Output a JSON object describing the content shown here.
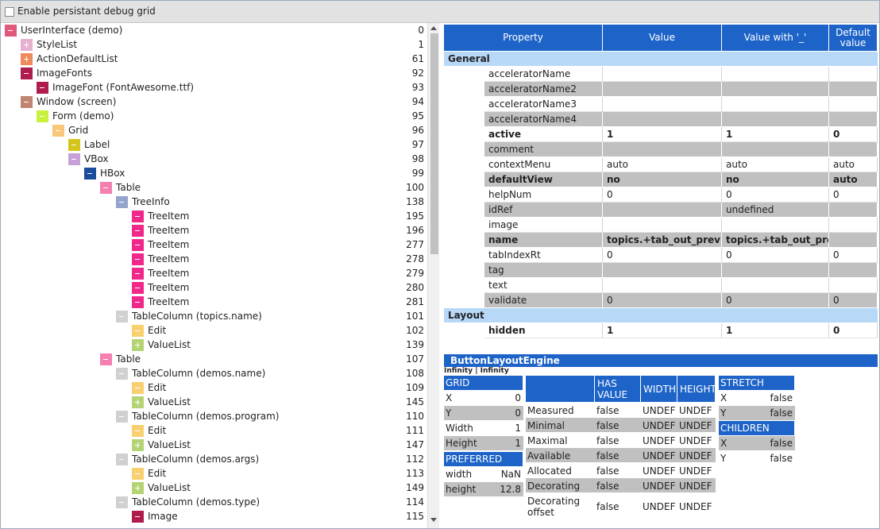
{
  "header": {
    "checkbox_label": "Enable persistant debug grid",
    "checked": false
  },
  "tree": {
    "items": [
      {
        "label": "UserInterface (demo)",
        "id": 0,
        "level": 0,
        "color": "#e2587a",
        "expanded": true
      },
      {
        "label": "StyleList",
        "id": 1,
        "level": 1,
        "color": "#e8b0d0",
        "expanded": false
      },
      {
        "label": "ActionDefaultList",
        "id": 61,
        "level": 1,
        "color": "#f08a5a",
        "expanded": false
      },
      {
        "label": "ImageFonts",
        "id": 92,
        "level": 1,
        "color": "#b01c4c",
        "expanded": true
      },
      {
        "label": "ImageFont (FontAwesome.ttf)",
        "id": 93,
        "level": 2,
        "color": "#b01c4c",
        "expanded": true
      },
      {
        "label": "Window (screen)",
        "id": 94,
        "level": 1,
        "color": "#c08470",
        "expanded": true
      },
      {
        "label": "Form (demo)",
        "id": 95,
        "level": 2,
        "color": "#c8f03c",
        "expanded": true
      },
      {
        "label": "Grid",
        "id": 96,
        "level": 3,
        "color": "#f8c878",
        "expanded": true
      },
      {
        "label": "Label",
        "id": 97,
        "level": 4,
        "color": "#d4c41c",
        "expanded": true
      },
      {
        "label": "VBox",
        "id": 98,
        "level": 4,
        "color": "#c8a0d8",
        "expanded": true
      },
      {
        "label": "HBox",
        "id": 99,
        "level": 5,
        "color": "#1c4c9c",
        "expanded": true
      },
      {
        "label": "Table",
        "id": 100,
        "level": 6,
        "color": "#f480b0",
        "expanded": true
      },
      {
        "label": "TreeInfo",
        "id": 138,
        "level": 7,
        "color": "#94a4cc",
        "expanded": true
      },
      {
        "label": "TreeItem",
        "id": 195,
        "level": 8,
        "color": "#f0288a",
        "expanded": true
      },
      {
        "label": "TreeItem",
        "id": 196,
        "level": 8,
        "color": "#f0288a",
        "expanded": true
      },
      {
        "label": "TreeItem",
        "id": 277,
        "level": 8,
        "color": "#f0288a",
        "expanded": true
      },
      {
        "label": "TreeItem",
        "id": 278,
        "level": 8,
        "color": "#f0288a",
        "expanded": true
      },
      {
        "label": "TreeItem",
        "id": 279,
        "level": 8,
        "color": "#f0288a",
        "expanded": true
      },
      {
        "label": "TreeItem",
        "id": 280,
        "level": 8,
        "color": "#f0288a",
        "expanded": true
      },
      {
        "label": "TreeItem",
        "id": 281,
        "level": 8,
        "color": "#f0288a",
        "expanded": true
      },
      {
        "label": "TableColumn (topics.name)",
        "id": 101,
        "level": 7,
        "color": "#d0d0d0",
        "expanded": true
      },
      {
        "label": "Edit",
        "id": 102,
        "level": 8,
        "color": "#f8d070",
        "expanded": true
      },
      {
        "label": "ValueList",
        "id": 139,
        "level": 8,
        "color": "#b4d474",
        "expanded": false
      },
      {
        "label": "Table",
        "id": 107,
        "level": 6,
        "color": "#f480b0",
        "expanded": true
      },
      {
        "label": "TableColumn (demos.name)",
        "id": 108,
        "level": 7,
        "color": "#d0d0d0",
        "expanded": true
      },
      {
        "label": "Edit",
        "id": 109,
        "level": 8,
        "color": "#f8d070",
        "expanded": true
      },
      {
        "label": "ValueList",
        "id": 145,
        "level": 8,
        "color": "#b4d474",
        "expanded": false
      },
      {
        "label": "TableColumn (demos.program)",
        "id": 110,
        "level": 7,
        "color": "#d0d0d0",
        "expanded": true
      },
      {
        "label": "Edit",
        "id": 111,
        "level": 8,
        "color": "#f8d070",
        "expanded": true
      },
      {
        "label": "ValueList",
        "id": 147,
        "level": 8,
        "color": "#b4d474",
        "expanded": false
      },
      {
        "label": "TableColumn (demos.args)",
        "id": 112,
        "level": 7,
        "color": "#d0d0d0",
        "expanded": true
      },
      {
        "label": "Edit",
        "id": 113,
        "level": 8,
        "color": "#f8d070",
        "expanded": true
      },
      {
        "label": "ValueList",
        "id": 149,
        "level": 8,
        "color": "#b4d474",
        "expanded": false
      },
      {
        "label": "TableColumn (demos.type)",
        "id": 114,
        "level": 7,
        "color": "#d0d0d0",
        "expanded": true
      },
      {
        "label": "Image",
        "id": 115,
        "level": 8,
        "color": "#b01c4c",
        "expanded": true
      }
    ]
  },
  "properties": {
    "columns": [
      "Property",
      "Value",
      "Value with '_'",
      "Default value"
    ],
    "sections": [
      {
        "title": "General",
        "rows": [
          {
            "cells": [
              "acceleratorName",
              null,
              null,
              null
            ],
            "bold": false
          },
          {
            "cells": [
              "acceleratorName2",
              null,
              null,
              null
            ],
            "bold": false
          },
          {
            "cells": [
              "acceleratorName3",
              null,
              null,
              null
            ],
            "bold": false
          },
          {
            "cells": [
              "acceleratorName4",
              null,
              null,
              null
            ],
            "bold": false
          },
          {
            "cells": [
              "active",
              1,
              1,
              0
            ],
            "bold": true
          },
          {
            "cells": [
              "comment",
              null,
              null,
              null
            ],
            "bold": false
          },
          {
            "cells": [
              "contextMenu",
              "auto",
              "auto",
              "auto"
            ],
            "bold": false
          },
          {
            "cells": [
              "defaultView",
              "no",
              "no",
              "auto"
            ],
            "bold": true
          },
          {
            "cells": [
              "helpNum",
              0,
              0,
              0
            ],
            "bold": false
          },
          {
            "cells": [
              "idRef",
              null,
              "undefined",
              null
            ],
            "bold": false
          },
          {
            "cells": [
              "image",
              null,
              null,
              null
            ],
            "bold": false
          },
          {
            "cells": [
              "name",
              "topics.+tab_out_prev",
              "topics.+tab_out_prev",
              null
            ],
            "bold": true
          },
          {
            "cells": [
              "tabIndexRt",
              0,
              0,
              0
            ],
            "bold": false
          },
          {
            "cells": [
              "tag",
              null,
              null,
              null
            ],
            "bold": false
          },
          {
            "cells": [
              "text",
              null,
              null,
              null
            ],
            "bold": false
          },
          {
            "cells": [
              "validate",
              0,
              0,
              0
            ],
            "bold": false
          }
        ]
      },
      {
        "title": "Layout",
        "rows": [
          {
            "cells": [
              "hidden",
              1,
              1,
              0
            ],
            "bold": true
          }
        ]
      }
    ]
  },
  "layout_engine": {
    "title": "ButtonLayoutEngine",
    "size": "Infinity | Infinity",
    "grid": {
      "title": "GRID",
      "rows": [
        [
          "X",
          0
        ],
        [
          "Y",
          0
        ],
        [
          "Width",
          1
        ],
        [
          "Height",
          1
        ]
      ]
    },
    "preferred": {
      "title": "PREFERRED",
      "rows": [
        [
          "width",
          "NaN"
        ],
        [
          "height",
          12.8
        ]
      ]
    },
    "measures": {
      "columns": [
        "HAS VALUE",
        "WIDTH",
        "HEIGHT"
      ],
      "rows": [
        [
          "Measured",
          "false",
          "UNDEF",
          "UNDEF"
        ],
        [
          "Minimal",
          "false",
          "UNDEF",
          "UNDEF"
        ],
        [
          "Maximal",
          "false",
          "UNDEF",
          "UNDEF"
        ],
        [
          "Available",
          "false",
          "UNDEF",
          "UNDEF"
        ],
        [
          "Allocated",
          "false",
          "UNDEF",
          "UNDEF"
        ],
        [
          "Decorating",
          "false",
          "UNDEF",
          "UNDEF"
        ],
        [
          "Decorating offset",
          "false",
          "UNDEF",
          "UNDEF"
        ]
      ]
    },
    "stretch": {
      "title": "STRETCH",
      "rows": [
        [
          "X",
          "false"
        ],
        [
          "Y",
          "false"
        ]
      ]
    },
    "children": {
      "title": "CHILDREN",
      "rows": [
        [
          "X",
          "false"
        ],
        [
          "Y",
          "false"
        ]
      ]
    }
  }
}
